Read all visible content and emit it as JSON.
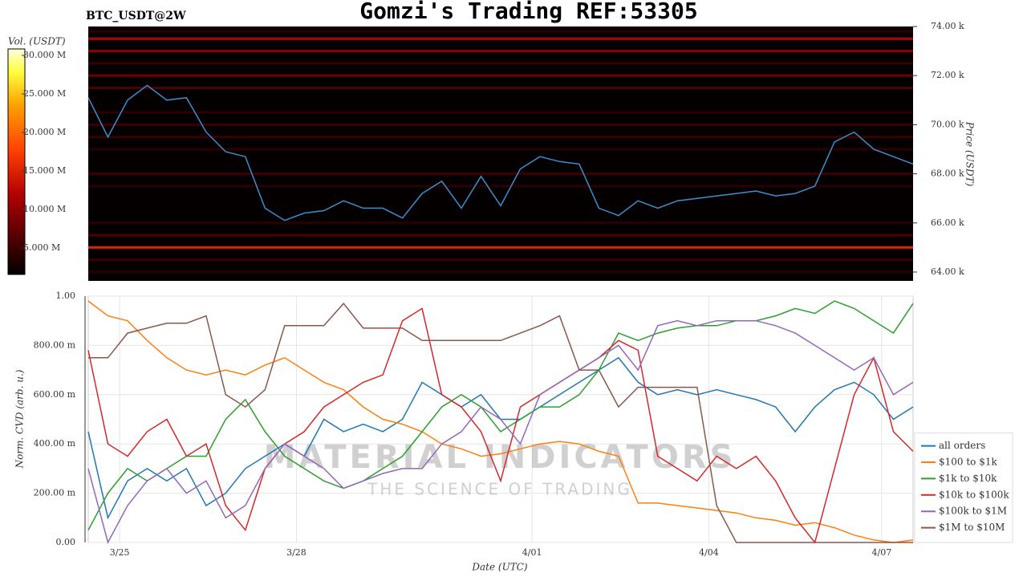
{
  "chart_data": [
    {
      "type": "heatmap",
      "title": "Gomzi's Trading REF:53305",
      "subtitle": "BTC_USDT@2W",
      "ylabel": "Price (USDT)",
      "xlim": [
        0,
        42
      ],
      "ylim": [
        63640,
        74000
      ],
      "yticks": [
        {
          "value": 64000,
          "label": "64.00 k"
        },
        {
          "value": 66000,
          "label": "66.00 k"
        },
        {
          "value": 68000,
          "label": "68.00 k"
        },
        {
          "value": 70000,
          "label": "70.00 k"
        },
        {
          "value": 72000,
          "label": "72.00 k"
        },
        {
          "value": 74000,
          "label": "74.00 k"
        }
      ],
      "color": "#3a8fd0",
      "values": [
        71100,
        69500,
        71000,
        71600,
        71000,
        71100,
        69700,
        68900,
        68700,
        66600,
        66100,
        66400,
        66500,
        66900,
        66600,
        66600,
        66200,
        67200,
        67700,
        66600,
        67900,
        66700,
        68200,
        68700,
        68500,
        68400,
        66600,
        66300,
        66900,
        66600,
        66900,
        67000,
        67100,
        67200,
        67300,
        67100,
        67200,
        67500,
        69300,
        69700,
        69000,
        68700,
        68400
      ],
      "levels": [
        {
          "price": 73800,
          "volume": 4000000
        },
        {
          "price": 73500,
          "volume": 12000000
        },
        {
          "price": 73000,
          "volume": 10000000
        },
        {
          "price": 72500,
          "volume": 5000000
        },
        {
          "price": 72000,
          "volume": 8000000
        },
        {
          "price": 71500,
          "volume": 6000000
        },
        {
          "price": 70500,
          "volume": 4000000
        },
        {
          "price": 70000,
          "volume": 5000000
        },
        {
          "price": 69500,
          "volume": 5000000
        },
        {
          "price": 69000,
          "volume": 4000000
        },
        {
          "price": 68000,
          "volume": 5000000
        },
        {
          "price": 67500,
          "volume": 4000000
        },
        {
          "price": 66000,
          "volume": 4000000
        },
        {
          "price": 65500,
          "volume": 6000000
        },
        {
          "price": 65000,
          "volume": 15000000
        },
        {
          "price": 64500,
          "volume": 5000000
        },
        {
          "price": 64000,
          "volume": 4000000
        }
      ],
      "colorbar": {
        "label": "Vol. (USDT)",
        "lim": [
          1560000,
          30830000
        ],
        "ticks": [
          {
            "value": 5000000,
            "label": "5.000 M"
          },
          {
            "value": 10000000,
            "label": "10.000 M"
          },
          {
            "value": 15000000,
            "label": "15.000 M"
          },
          {
            "value": 20000000,
            "label": "20.000 M"
          },
          {
            "value": 25000000,
            "label": "25.000 M"
          },
          {
            "value": 30000000,
            "label": "30.000 M"
          }
        ]
      }
    },
    {
      "type": "line",
      "xlabel": "Date (UTC)",
      "ylabel": "Norm. CVD (arb. u.)",
      "xlim": [
        0,
        42
      ],
      "ylim": [
        0,
        1
      ],
      "xticks": [
        {
          "value": 1.6,
          "label": "3/25"
        },
        {
          "value": 10.6,
          "label": "3/28"
        },
        {
          "value": 22.6,
          "label": "4/01"
        },
        {
          "value": 31.6,
          "label": "4/04"
        },
        {
          "value": 40.4,
          "label": "4/07"
        }
      ],
      "yticks": [
        {
          "value": 0,
          "label": "0.00"
        },
        {
          "value": 0.2,
          "label": "200.00 m"
        },
        {
          "value": 0.4,
          "label": "400.00 m"
        },
        {
          "value": 0.6,
          "label": "600.00 m"
        },
        {
          "value": 0.8,
          "label": "800.00 m"
        },
        {
          "value": 1,
          "label": "1.00"
        }
      ],
      "grid": true,
      "legend": "lower right",
      "watermark": [
        "MATERIAL INDICATORS",
        "THE SCIENCE OF TRADING"
      ],
      "series": [
        {
          "name": "all orders",
          "color": "#1f77b4",
          "values": [
            0.45,
            0.1,
            0.25,
            0.3,
            0.25,
            0.3,
            0.15,
            0.2,
            0.3,
            0.35,
            0.4,
            0.35,
            0.5,
            0.45,
            0.48,
            0.45,
            0.5,
            0.65,
            0.6,
            0.55,
            0.6,
            0.5,
            0.5,
            0.55,
            0.6,
            0.65,
            0.7,
            0.75,
            0.65,
            0.6,
            0.62,
            0.6,
            0.62,
            0.6,
            0.58,
            0.55,
            0.45,
            0.55,
            0.62,
            0.65,
            0.6,
            0.5,
            0.55
          ]
        },
        {
          "name": "$100 to $1k",
          "color": "#ff7f0e",
          "values": [
            0.98,
            0.92,
            0.9,
            0.82,
            0.75,
            0.7,
            0.68,
            0.7,
            0.68,
            0.72,
            0.75,
            0.7,
            0.65,
            0.62,
            0.55,
            0.5,
            0.48,
            0.45,
            0.4,
            0.38,
            0.35,
            0.36,
            0.38,
            0.4,
            0.41,
            0.4,
            0.37,
            0.35,
            0.16,
            0.16,
            0.15,
            0.14,
            0.13,
            0.12,
            0.1,
            0.09,
            0.07,
            0.08,
            0.06,
            0.03,
            0.01,
            0,
            0.01
          ]
        },
        {
          "name": "$1k to $10k",
          "color": "#2ca02c",
          "values": [
            0.05,
            0.2,
            0.3,
            0.25,
            0.3,
            0.35,
            0.35,
            0.5,
            0.58,
            0.45,
            0.35,
            0.3,
            0.25,
            0.22,
            0.25,
            0.3,
            0.35,
            0.45,
            0.55,
            0.6,
            0.55,
            0.45,
            0.5,
            0.55,
            0.55,
            0.6,
            0.7,
            0.85,
            0.82,
            0.85,
            0.87,
            0.88,
            0.88,
            0.9,
            0.9,
            0.92,
            0.95,
            0.93,
            0.98,
            0.95,
            0.9,
            0.85,
            0.97
          ]
        },
        {
          "name": "$10k to $100k",
          "color": "#d62728",
          "values": [
            0.78,
            0.4,
            0.35,
            0.45,
            0.5,
            0.35,
            0.4,
            0.15,
            0.05,
            0.3,
            0.4,
            0.45,
            0.55,
            0.6,
            0.65,
            0.68,
            0.9,
            0.95,
            0.6,
            0.55,
            0.45,
            0.25,
            0.55,
            0.6,
            0.65,
            0.7,
            0.75,
            0.82,
            0.78,
            0.35,
            0.3,
            0.25,
            0.35,
            0.3,
            0.35,
            0.25,
            0.1,
            0,
            0.3,
            0.6,
            0.75,
            0.45,
            0.37
          ]
        },
        {
          "name": "$100k to $1M",
          "color": "#9467bd",
          "values": [
            0.3,
            0,
            0.15,
            0.25,
            0.3,
            0.2,
            0.25,
            0.1,
            0.15,
            0.3,
            0.4,
            0.35,
            0.3,
            0.22,
            0.25,
            0.28,
            0.3,
            0.3,
            0.4,
            0.45,
            0.55,
            0.5,
            0.4,
            0.6,
            0.65,
            0.7,
            0.75,
            0.8,
            0.7,
            0.88,
            0.9,
            0.88,
            0.9,
            0.9,
            0.9,
            0.88,
            0.85,
            0.8,
            0.75,
            0.7,
            0.75,
            0.6,
            0.65
          ]
        },
        {
          "name": "$1M to $10M",
          "color": "#8c564b",
          "values": [
            0.75,
            0.75,
            0.85,
            0.87,
            0.89,
            0.89,
            0.92,
            0.6,
            0.55,
            0.62,
            0.88,
            0.88,
            0.88,
            0.97,
            0.87,
            0.87,
            0.87,
            0.82,
            0.82,
            0.82,
            0.82,
            0.82,
            0.85,
            0.88,
            0.92,
            0.7,
            0.7,
            0.55,
            0.63,
            0.63,
            0.63,
            0.63,
            0.15,
            0,
            0,
            0,
            0,
            0,
            0,
            0,
            0,
            0,
            0
          ]
        }
      ]
    }
  ]
}
